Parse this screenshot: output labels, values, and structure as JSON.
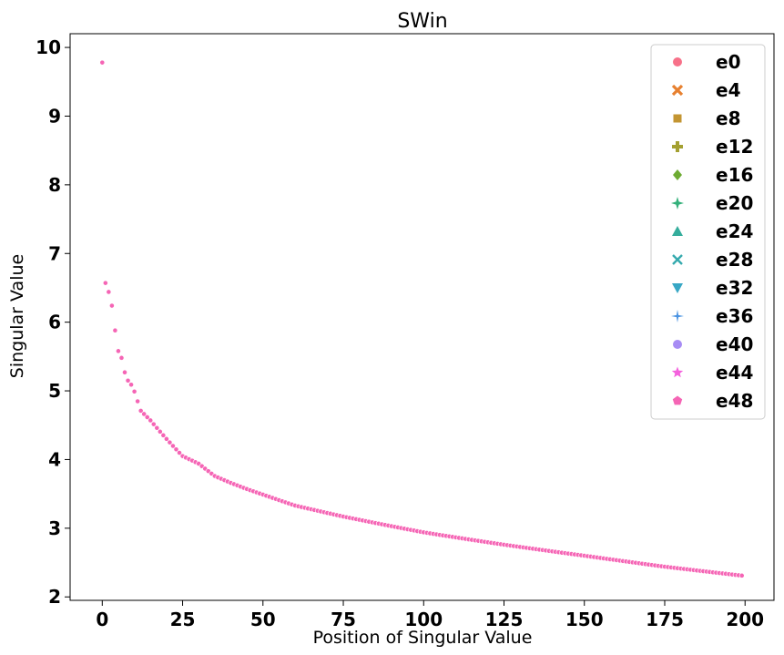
{
  "chart_data": {
    "type": "scatter",
    "title": "SWin",
    "xlabel": "Position of Singular Value",
    "ylabel": "Singular Value",
    "xlim": [
      -10,
      209
    ],
    "ylim": [
      1.95,
      10.2
    ],
    "xticks": [
      0,
      25,
      50,
      75,
      100,
      125,
      150,
      175,
      200
    ],
    "yticks": [
      2,
      3,
      4,
      5,
      6,
      7,
      8,
      9,
      10
    ],
    "grid": false,
    "legend_position": "top-right",
    "series": [
      {
        "name": "e0",
        "color": "#f77189",
        "marker": "circle"
      },
      {
        "name": "e4",
        "color": "#e7802f",
        "marker": "x"
      },
      {
        "name": "e8",
        "color": "#c39532",
        "marker": "square"
      },
      {
        "name": "e12",
        "color": "#a4a031",
        "marker": "plus"
      },
      {
        "name": "e16",
        "color": "#6dab32",
        "marker": "diamond"
      },
      {
        "name": "e20",
        "color": "#33b07a",
        "marker": "star4"
      },
      {
        "name": "e24",
        "color": "#35ad9c",
        "marker": "triangle-up"
      },
      {
        "name": "e28",
        "color": "#36aaae",
        "marker": "x-thin"
      },
      {
        "name": "e32",
        "color": "#38a7c5",
        "marker": "triangle-down"
      },
      {
        "name": "e36",
        "color": "#4a93e2",
        "marker": "star4-thin"
      },
      {
        "name": "e40",
        "color": "#a78cf4",
        "marker": "circle"
      },
      {
        "name": "e44",
        "color": "#f461dd",
        "marker": "star5"
      },
      {
        "name": "e48",
        "color": "#f565b5",
        "marker": "pentagon"
      }
    ],
    "curve_anchors": {
      "x": [
        0,
        1,
        2,
        3,
        4,
        5,
        6,
        7,
        8,
        9,
        10,
        12,
        15,
        20,
        25,
        30,
        35,
        40,
        45,
        50,
        60,
        75,
        100,
        125,
        150,
        175,
        199
      ],
      "y": [
        9.78,
        6.57,
        6.44,
        6.24,
        5.88,
        5.58,
        5.48,
        5.27,
        5.15,
        5.09,
        4.99,
        4.71,
        4.57,
        4.3,
        4.05,
        3.94,
        3.76,
        3.66,
        3.57,
        3.49,
        3.33,
        3.17,
        2.94,
        2.76,
        2.6,
        2.44,
        2.31
      ]
    },
    "plotted_series": "e48"
  }
}
